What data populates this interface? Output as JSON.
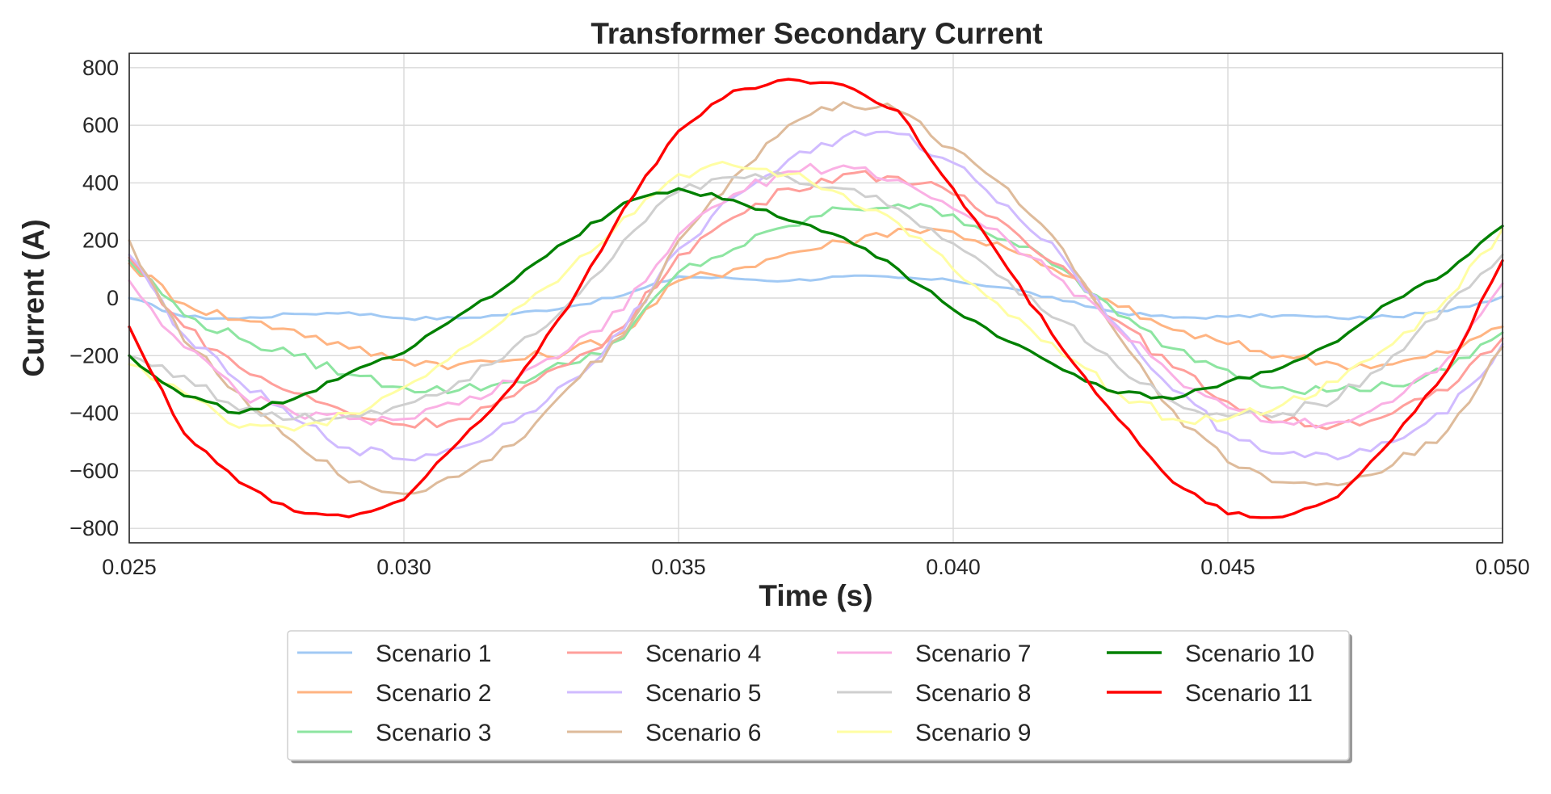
{
  "chart_data": {
    "type": "line",
    "title": "Transformer Secondary Current",
    "xlabel": "Time (s)",
    "ylabel": "Current (A)",
    "xlim": [
      0.025,
      0.05
    ],
    "ylim": [
      -850,
      850
    ],
    "xticks": [
      0.025,
      0.03,
      0.035,
      0.04,
      0.045,
      0.05
    ],
    "xtick_labels": [
      "0.025",
      "0.030",
      "0.035",
      "0.040",
      "0.045",
      "0.050"
    ],
    "yticks": [
      -800,
      -600,
      -400,
      -200,
      0,
      200,
      400,
      600,
      800
    ],
    "ytick_labels": [
      "−800",
      "−600",
      "−400",
      "−200",
      "0",
      "200",
      "400",
      "600",
      "800"
    ],
    "grid": true,
    "legend": {
      "placement": "bottom-center",
      "columns": 4
    },
    "series": [
      {
        "name": "Scenario 1",
        "color": "#a1c9f4",
        "width": 3,
        "x": [
          0.025,
          0.026,
          0.027,
          0.028,
          0.029,
          0.03,
          0.031,
          0.032,
          0.033,
          0.034,
          0.035,
          0.036,
          0.037,
          0.038,
          0.039,
          0.04,
          0.041,
          0.042,
          0.043,
          0.044,
          0.045,
          0.046,
          0.047,
          0.048,
          0.049,
          0.05
        ],
        "y": [
          0,
          -65,
          -72,
          -55,
          -50,
          -70,
          -70,
          -55,
          -30,
          10,
          75,
          68,
          60,
          75,
          70,
          60,
          35,
          -10,
          -50,
          -68,
          -65,
          -60,
          -70,
          -65,
          -45,
          5
        ]
      },
      {
        "name": "Scenario 2",
        "color": "#ffb482",
        "width": 3,
        "x": [
          0.025,
          0.026,
          0.027,
          0.028,
          0.029,
          0.03,
          0.031,
          0.032,
          0.033,
          0.034,
          0.035,
          0.036,
          0.037,
          0.038,
          0.039,
          0.04,
          0.041,
          0.042,
          0.043,
          0.044,
          0.045,
          0.046,
          0.047,
          0.048,
          0.049,
          0.05
        ],
        "y": [
          120,
          -20,
          -75,
          -110,
          -175,
          -215,
          -230,
          -215,
          -185,
          -120,
          60,
          100,
          155,
          195,
          240,
          230,
          170,
          80,
          -30,
          -110,
          -160,
          -200,
          -230,
          -230,
          -190,
          -100
        ]
      },
      {
        "name": "Scenario 3",
        "color": "#8de5a1",
        "width": 3,
        "x": [
          0.025,
          0.026,
          0.027,
          0.028,
          0.029,
          0.03,
          0.031,
          0.032,
          0.033,
          0.034,
          0.035,
          0.036,
          0.037,
          0.038,
          0.039,
          0.04,
          0.041,
          0.042,
          0.043,
          0.044,
          0.045,
          0.046,
          0.047,
          0.048,
          0.049,
          0.05
        ],
        "y": [
          130,
          -60,
          -140,
          -200,
          -265,
          -310,
          -320,
          -290,
          -230,
          -140,
          90,
          170,
          250,
          310,
          325,
          290,
          200,
          100,
          -60,
          -175,
          -250,
          -310,
          -320,
          -305,
          -250,
          -120
        ]
      },
      {
        "name": "Scenario 4",
        "color": "#ff9f9b",
        "width": 3,
        "x": [
          0.025,
          0.026,
          0.027,
          0.028,
          0.029,
          0.03,
          0.031,
          0.032,
          0.033,
          0.034,
          0.035,
          0.036,
          0.037,
          0.038,
          0.039,
          0.04,
          0.041,
          0.042,
          0.043,
          0.044,
          0.045,
          0.046,
          0.047,
          0.048,
          0.049,
          0.05
        ],
        "y": [
          140,
          -100,
          -240,
          -330,
          -400,
          -440,
          -420,
          -340,
          -230,
          -100,
          150,
          280,
          380,
          430,
          420,
          360,
          250,
          110,
          -80,
          -240,
          -360,
          -430,
          -440,
          -400,
          -320,
          -140
        ]
      },
      {
        "name": "Scenario 5",
        "color": "#d0bbff",
        "width": 3,
        "x": [
          0.025,
          0.026,
          0.027,
          0.028,
          0.029,
          0.03,
          0.031,
          0.032,
          0.033,
          0.034,
          0.035,
          0.036,
          0.037,
          0.038,
          0.039,
          0.04,
          0.041,
          0.042,
          0.043,
          0.044,
          0.045,
          0.046,
          0.047,
          0.048,
          0.049,
          0.05
        ],
        "y": [
          150,
          -130,
          -290,
          -420,
          -520,
          -560,
          -520,
          -430,
          -290,
          -110,
          170,
          350,
          480,
          560,
          570,
          470,
          320,
          140,
          -100,
          -320,
          -470,
          -540,
          -560,
          -500,
          -400,
          -160
        ]
      },
      {
        "name": "Scenario 6",
        "color": "#debb9b",
        "width": 3,
        "x": [
          0.025,
          0.026,
          0.027,
          0.028,
          0.029,
          0.03,
          0.031,
          0.032,
          0.033,
          0.034,
          0.035,
          0.036,
          0.037,
          0.038,
          0.039,
          0.04,
          0.041,
          0.042,
          0.043,
          0.044,
          0.045,
          0.046,
          0.047,
          0.048,
          0.049,
          0.05
        ],
        "y": [
          200,
          -150,
          -330,
          -500,
          -640,
          -680,
          -620,
          -510,
          -310,
          -130,
          200,
          420,
          600,
          680,
          650,
          520,
          380,
          170,
          -130,
          -390,
          -570,
          -640,
          -650,
          -580,
          -460,
          -170
        ]
      },
      {
        "name": "Scenario 7",
        "color": "#fab0e4",
        "width": 3,
        "x": [
          0.025,
          0.026,
          0.027,
          0.028,
          0.029,
          0.03,
          0.031,
          0.032,
          0.033,
          0.034,
          0.035,
          0.036,
          0.037,
          0.038,
          0.039,
          0.04,
          0.041,
          0.042,
          0.043,
          0.044,
          0.045,
          0.046,
          0.047,
          0.048,
          0.049,
          0.05
        ],
        "y": [
          60,
          -170,
          -330,
          -400,
          -420,
          -420,
          -370,
          -290,
          -180,
          -40,
          220,
          360,
          440,
          460,
          410,
          310,
          200,
          60,
          -110,
          -270,
          -380,
          -430,
          -430,
          -360,
          -210,
          50
        ]
      },
      {
        "name": "Scenario 8",
        "color": "#cfcfcf",
        "width": 3,
        "x": [
          0.025,
          0.026,
          0.027,
          0.028,
          0.029,
          0.03,
          0.031,
          0.032,
          0.033,
          0.034,
          0.035,
          0.036,
          0.037,
          0.038,
          0.039,
          0.04,
          0.041,
          0.042,
          0.043,
          0.044,
          0.045,
          0.046,
          0.047,
          0.048,
          0.049,
          0.05
        ],
        "y": [
          -200,
          -270,
          -390,
          -420,
          -410,
          -370,
          -290,
          -170,
          -20,
          200,
          370,
          420,
          420,
          380,
          310,
          190,
          60,
          -80,
          -240,
          -360,
          -410,
          -400,
          -350,
          -200,
          -20,
          150
        ]
      },
      {
        "name": "Scenario 9",
        "color": "#fffea3",
        "width": 3,
        "x": [
          0.025,
          0.026,
          0.027,
          0.028,
          0.029,
          0.03,
          0.031,
          0.032,
          0.033,
          0.034,
          0.035,
          0.036,
          0.037,
          0.038,
          0.039,
          0.04,
          0.041,
          0.042,
          0.043,
          0.044,
          0.045,
          0.046,
          0.047,
          0.048,
          0.049,
          0.05
        ],
        "y": [
          -230,
          -330,
          -450,
          -460,
          -400,
          -310,
          -180,
          -40,
          100,
          280,
          430,
          460,
          430,
          360,
          260,
          100,
          -60,
          -200,
          -330,
          -420,
          -420,
          -370,
          -290,
          -160,
          0,
          240
        ]
      },
      {
        "name": "Scenario 10",
        "color": "#008000",
        "width": 3.4,
        "x": [
          0.025,
          0.026,
          0.027,
          0.028,
          0.029,
          0.03,
          0.031,
          0.032,
          0.033,
          0.034,
          0.035,
          0.036,
          0.037,
          0.038,
          0.039,
          0.04,
          0.041,
          0.042,
          0.043,
          0.044,
          0.045,
          0.046,
          0.047,
          0.048,
          0.049,
          0.05
        ],
        "y": [
          -200,
          -340,
          -400,
          -350,
          -260,
          -190,
          -60,
          60,
          200,
          330,
          380,
          340,
          270,
          210,
          100,
          -40,
          -150,
          -250,
          -330,
          -350,
          -290,
          -240,
          -150,
          -10,
          90,
          250
        ]
      },
      {
        "name": "Scenario 11",
        "color": "#ff0000",
        "width": 3.4,
        "x": [
          0.025,
          0.026,
          0.027,
          0.028,
          0.029,
          0.03,
          0.031,
          0.032,
          0.033,
          0.034,
          0.035,
          0.036,
          0.037,
          0.038,
          0.039,
          0.04,
          0.041,
          0.042,
          0.043,
          0.044,
          0.045,
          0.046,
          0.047,
          0.048,
          0.049,
          0.05
        ],
        "y": [
          -100,
          -470,
          -640,
          -740,
          -760,
          -700,
          -500,
          -300,
          -30,
          310,
          580,
          720,
          760,
          740,
          650,
          380,
          100,
          -180,
          -420,
          -640,
          -750,
          -760,
          -690,
          -490,
          -250,
          130
        ]
      }
    ]
  }
}
